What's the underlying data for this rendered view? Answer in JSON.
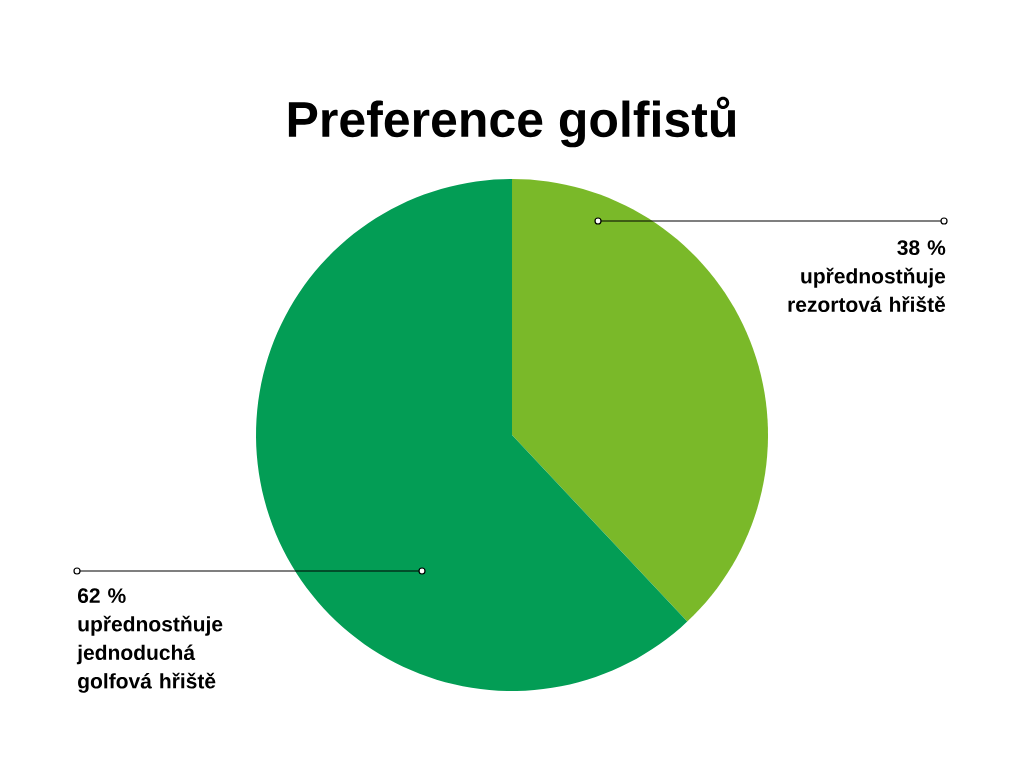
{
  "chart_data": {
    "type": "pie",
    "title": "Preference golfistů",
    "categories": [
      "upřednostňuje rezortová hřiště",
      "upřednostňuje jednoduchá golfová hřiště"
    ],
    "values": [
      38,
      62
    ],
    "value_labels": [
      "38 %",
      "62 %"
    ],
    "colors": [
      "#7ab929",
      "#039d55"
    ]
  }
}
